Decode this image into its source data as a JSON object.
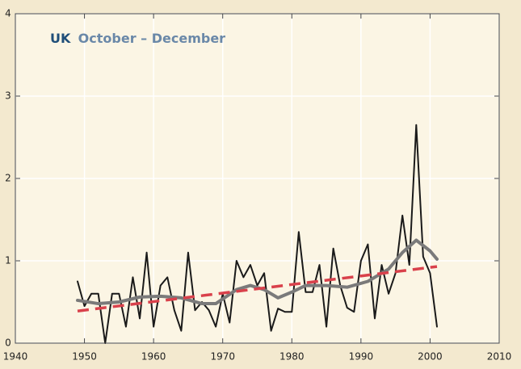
{
  "chart_data": {
    "type": "line",
    "region": "UK",
    "title": "October – December",
    "region_color": "#1f4e79",
    "title_color": "#6a88a8",
    "series": [
      {
        "color": "#1a1a1a",
        "width": 2,
        "x": [
          1949,
          1950,
          1951,
          1952,
          1953,
          1954,
          1955,
          1956,
          1957,
          1958,
          1959,
          1960,
          1961,
          1962,
          1963,
          1964,
          1965,
          1966,
          1967,
          1968,
          1969,
          1970,
          1971,
          1972,
          1973,
          1974,
          1975,
          1976,
          1977,
          1978,
          1979,
          1980,
          1981,
          1982,
          1983,
          1984,
          1985,
          1986,
          1987,
          1988,
          1989,
          1990,
          1991,
          1992,
          1993,
          1994,
          1995,
          1996,
          1997,
          1998,
          1999,
          2000,
          2001
        ],
        "values": [
          0.75,
          0.45,
          0.6,
          0.6,
          0.0,
          0.6,
          0.6,
          0.2,
          0.8,
          0.3,
          1.1,
          0.2,
          0.7,
          0.8,
          0.4,
          0.15,
          1.1,
          0.4,
          0.5,
          0.4,
          0.2,
          0.6,
          0.25,
          1.0,
          0.8,
          0.95,
          0.7,
          0.85,
          0.15,
          0.42,
          0.38,
          0.38,
          1.35,
          0.62,
          0.62,
          0.95,
          0.2,
          1.15,
          0.7,
          0.43,
          0.38,
          1.0,
          1.2,
          0.3,
          0.95,
          0.6,
          0.85,
          1.55,
          0.95,
          2.65,
          1.05,
          0.85,
          0.2
        ]
      },
      {
        "color": "#7a7a7a",
        "width": 4,
        "x": [
          1949,
          1952,
          1955,
          1958,
          1961,
          1964,
          1967,
          1969,
          1972,
          1974,
          1976,
          1978,
          1980,
          1982,
          1985,
          1988,
          1991,
          1994,
          1996,
          1998,
          2000,
          2001
        ],
        "values": [
          0.52,
          0.48,
          0.5,
          0.56,
          0.57,
          0.55,
          0.48,
          0.48,
          0.65,
          0.7,
          0.65,
          0.55,
          0.62,
          0.7,
          0.7,
          0.68,
          0.75,
          0.9,
          1.1,
          1.25,
          1.12,
          1.02
        ]
      },
      {
        "color": "#d9414b",
        "width": 3.5,
        "dashed": true,
        "x": [
          1949,
          2001
        ],
        "values": [
          0.39,
          0.93
        ]
      }
    ],
    "xlim": [
      1940,
      2010
    ],
    "xticks": [
      1940,
      1950,
      1960,
      1970,
      1980,
      1990,
      2000,
      2010
    ],
    "ylim": [
      0,
      4
    ],
    "yticks": [
      0,
      1,
      2,
      3,
      4
    ],
    "grid": true
  }
}
